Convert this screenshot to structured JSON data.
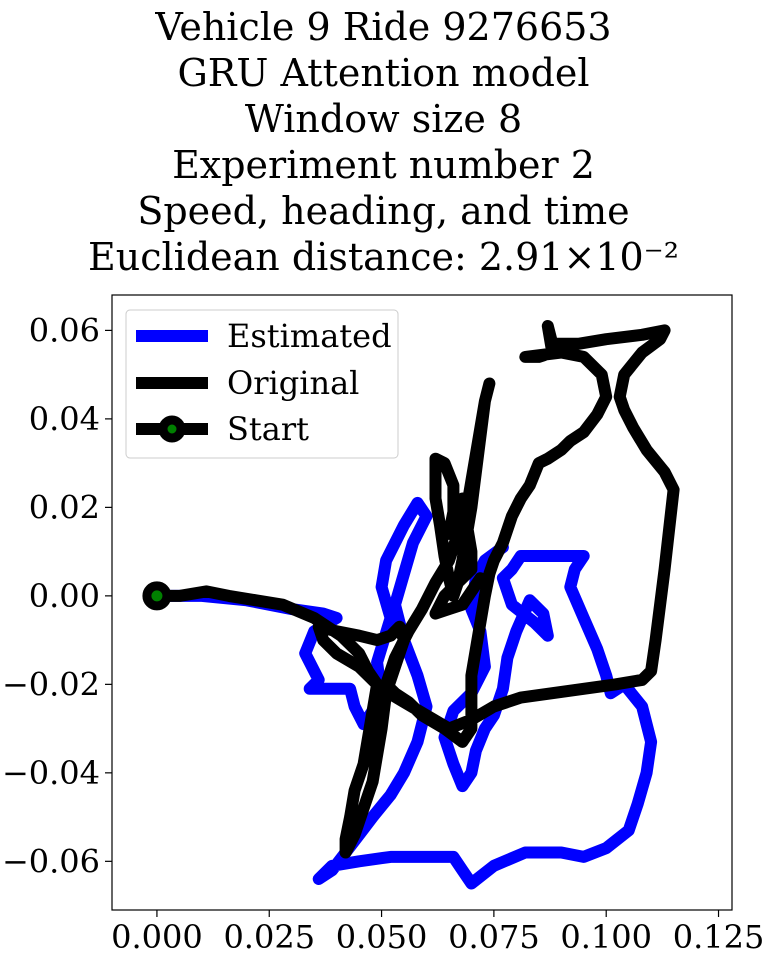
{
  "chart_data": {
    "type": "line",
    "title_lines": [
      "Vehicle 9 Ride 9276653",
      "GRU Attention model",
      "Window size 8",
      "Experiment number 2",
      "Speed, heading, and time",
      "Euclidean distance: 2.91×10⁻²"
    ],
    "xlabel": "",
    "ylabel": "",
    "xlim": [
      -0.01,
      0.128
    ],
    "ylim": [
      -0.071,
      0.068
    ],
    "xticks": [
      0.0,
      0.025,
      0.05,
      0.075,
      0.1,
      0.125
    ],
    "xtick_labels": [
      "0.000",
      "0.025",
      "0.050",
      "0.075",
      "0.100",
      "0.125"
    ],
    "yticks": [
      -0.06,
      -0.04,
      -0.02,
      0.0,
      0.02,
      0.04,
      0.06
    ],
    "ytick_labels": [
      "−0.06",
      "−0.04",
      "−0.02",
      "0.00",
      "0.02",
      "0.04",
      "0.06"
    ],
    "grid": false,
    "legend_position": "top-left",
    "legend": [
      "Estimated",
      "Original",
      "Start"
    ],
    "series": [
      {
        "name": "Estimated",
        "color": "#0000ff",
        "points": [
          [
            0.0,
            0.0
          ],
          [
            0.01,
            0.0
          ],
          [
            0.02,
            -0.001
          ],
          [
            0.03,
            -0.003
          ],
          [
            0.037,
            -0.004
          ],
          [
            0.04,
            -0.005
          ],
          [
            0.035,
            -0.008
          ],
          [
            0.033,
            -0.013
          ],
          [
            0.036,
            -0.019
          ],
          [
            0.034,
            -0.021
          ],
          [
            0.037,
            -0.021
          ],
          [
            0.043,
            -0.021
          ],
          [
            0.044,
            -0.025
          ],
          [
            0.046,
            -0.029
          ],
          [
            0.05,
            -0.023
          ],
          [
            0.049,
            -0.015
          ],
          [
            0.052,
            -0.005
          ],
          [
            0.05,
            0.002
          ],
          [
            0.051,
            0.008
          ],
          [
            0.055,
            0.016
          ],
          [
            0.058,
            0.021
          ],
          [
            0.06,
            0.018
          ],
          [
            0.057,
            0.012
          ],
          [
            0.055,
            0.005
          ],
          [
            0.053,
            -0.002
          ],
          [
            0.055,
            -0.01
          ],
          [
            0.058,
            -0.018
          ],
          [
            0.06,
            -0.025
          ],
          [
            0.058,
            -0.033
          ],
          [
            0.055,
            -0.04
          ],
          [
            0.052,
            -0.045
          ],
          [
            0.048,
            -0.05
          ],
          [
            0.045,
            -0.054
          ],
          [
            0.042,
            -0.058
          ],
          [
            0.039,
            -0.062
          ],
          [
            0.036,
            -0.064
          ],
          [
            0.039,
            -0.061
          ],
          [
            0.045,
            -0.06
          ],
          [
            0.052,
            -0.059
          ],
          [
            0.06,
            -0.059
          ],
          [
            0.066,
            -0.059
          ],
          [
            0.068,
            -0.062
          ],
          [
            0.07,
            -0.065
          ],
          [
            0.075,
            -0.061
          ],
          [
            0.082,
            -0.058
          ],
          [
            0.09,
            -0.058
          ],
          [
            0.095,
            -0.059
          ],
          [
            0.1,
            -0.057
          ],
          [
            0.105,
            -0.053
          ],
          [
            0.107,
            -0.047
          ],
          [
            0.109,
            -0.04
          ],
          [
            0.11,
            -0.033
          ],
          [
            0.108,
            -0.025
          ],
          [
            0.104,
            -0.02
          ],
          [
            0.101,
            -0.022
          ],
          [
            0.1,
            -0.018
          ],
          [
            0.098,
            -0.012
          ],
          [
            0.095,
            -0.005
          ],
          [
            0.092,
            0.002
          ],
          [
            0.093,
            0.006
          ],
          [
            0.095,
            0.009
          ],
          [
            0.09,
            0.009
          ],
          [
            0.085,
            0.009
          ],
          [
            0.081,
            0.009
          ],
          [
            0.079,
            0.006
          ],
          [
            0.077,
            0.004
          ],
          [
            0.079,
            -0.002
          ],
          [
            0.084,
            -0.006
          ],
          [
            0.087,
            -0.009
          ],
          [
            0.086,
            -0.004
          ],
          [
            0.083,
            -0.001
          ],
          [
            0.08,
            -0.008
          ],
          [
            0.078,
            -0.014
          ],
          [
            0.077,
            -0.021
          ],
          [
            0.075,
            -0.027
          ],
          [
            0.073,
            -0.03
          ],
          [
            0.071,
            -0.035
          ],
          [
            0.07,
            -0.04
          ],
          [
            0.068,
            -0.043
          ],
          [
            0.066,
            -0.038
          ],
          [
            0.064,
            -0.032
          ],
          [
            0.066,
            -0.026
          ],
          [
            0.07,
            -0.022
          ],
          [
            0.073,
            -0.016
          ],
          [
            0.072,
            -0.008
          ],
          [
            0.07,
            -0.003
          ],
          [
            0.071,
            0.004
          ],
          [
            0.073,
            0.008
          ],
          [
            0.077,
            0.011
          ]
        ]
      },
      {
        "name": "Original",
        "color": "#000000",
        "points": [
          [
            0.0,
            0.0
          ],
          [
            0.005,
            0.0
          ],
          [
            0.011,
            0.001
          ],
          [
            0.016,
            0.0
          ],
          [
            0.022,
            -0.001
          ],
          [
            0.028,
            -0.002
          ],
          [
            0.035,
            -0.005
          ],
          [
            0.041,
            -0.009
          ],
          [
            0.045,
            -0.013
          ],
          [
            0.047,
            -0.017
          ],
          [
            0.049,
            -0.02
          ],
          [
            0.048,
            -0.026
          ],
          [
            0.047,
            -0.032
          ],
          [
            0.046,
            -0.038
          ],
          [
            0.044,
            -0.044
          ],
          [
            0.043,
            -0.05
          ],
          [
            0.042,
            -0.055
          ],
          [
            0.042,
            -0.058
          ],
          [
            0.044,
            -0.054
          ],
          [
            0.046,
            -0.048
          ],
          [
            0.048,
            -0.042
          ],
          [
            0.049,
            -0.036
          ],
          [
            0.05,
            -0.03
          ],
          [
            0.051,
            -0.022
          ],
          [
            0.053,
            -0.016
          ],
          [
            0.055,
            -0.01
          ],
          [
            0.054,
            -0.007
          ],
          [
            0.052,
            -0.009
          ],
          [
            0.049,
            -0.01
          ],
          [
            0.045,
            -0.009
          ],
          [
            0.04,
            -0.008
          ],
          [
            0.036,
            -0.007
          ],
          [
            0.037,
            -0.01
          ],
          [
            0.04,
            -0.013
          ],
          [
            0.045,
            -0.016
          ],
          [
            0.05,
            -0.021
          ],
          [
            0.055,
            -0.024
          ],
          [
            0.06,
            -0.027
          ],
          [
            0.065,
            -0.03
          ],
          [
            0.07,
            -0.028
          ],
          [
            0.075,
            -0.025
          ],
          [
            0.081,
            -0.023
          ],
          [
            0.088,
            -0.022
          ],
          [
            0.095,
            -0.021
          ],
          [
            0.102,
            -0.02
          ],
          [
            0.108,
            -0.019
          ],
          [
            0.11,
            -0.017
          ],
          [
            0.111,
            -0.01
          ],
          [
            0.112,
            -0.002
          ],
          [
            0.113,
            0.006
          ],
          [
            0.114,
            0.015
          ],
          [
            0.115,
            0.024
          ],
          [
            0.113,
            0.028
          ],
          [
            0.109,
            0.033
          ],
          [
            0.106,
            0.038
          ],
          [
            0.104,
            0.042
          ],
          [
            0.103,
            0.045
          ],
          [
            0.104,
            0.05
          ],
          [
            0.108,
            0.055
          ],
          [
            0.112,
            0.058
          ],
          [
            0.113,
            0.06
          ],
          [
            0.108,
            0.059
          ],
          [
            0.1,
            0.058
          ],
          [
            0.094,
            0.057
          ],
          [
            0.088,
            0.057
          ],
          [
            0.087,
            0.061
          ],
          [
            0.088,
            0.055
          ],
          [
            0.085,
            0.054
          ],
          [
            0.082,
            0.054
          ],
          [
            0.09,
            0.055
          ],
          [
            0.095,
            0.054
          ],
          [
            0.099,
            0.05
          ],
          [
            0.1,
            0.045
          ],
          [
            0.098,
            0.041
          ],
          [
            0.095,
            0.037
          ],
          [
            0.092,
            0.035
          ],
          [
            0.09,
            0.033
          ],
          [
            0.087,
            0.031
          ],
          [
            0.085,
            0.03
          ],
          [
            0.083,
            0.025
          ],
          [
            0.081,
            0.022
          ],
          [
            0.079,
            0.018
          ],
          [
            0.077,
            0.012
          ],
          [
            0.075,
            0.008
          ],
          [
            0.074,
            0.005
          ],
          [
            0.073,
            0.0
          ],
          [
            0.072,
            -0.006
          ],
          [
            0.071,
            -0.012
          ],
          [
            0.07,
            -0.018
          ],
          [
            0.07,
            -0.024
          ],
          [
            0.07,
            -0.03
          ],
          [
            0.068,
            -0.033
          ],
          [
            0.064,
            -0.03
          ],
          [
            0.059,
            -0.027
          ],
          [
            0.056,
            -0.024
          ],
          [
            0.053,
            -0.022
          ],
          [
            0.051,
            -0.02
          ],
          [
            0.053,
            -0.014
          ],
          [
            0.056,
            -0.008
          ],
          [
            0.059,
            -0.003
          ],
          [
            0.062,
            0.003
          ],
          [
            0.065,
            0.008
          ],
          [
            0.067,
            0.014
          ],
          [
            0.069,
            0.02
          ],
          [
            0.07,
            0.026
          ],
          [
            0.071,
            0.032
          ],
          [
            0.072,
            0.038
          ],
          [
            0.073,
            0.044
          ],
          [
            0.074,
            0.048
          ],
          [
            0.073,
            0.044
          ],
          [
            0.072,
            0.036
          ],
          [
            0.071,
            0.028
          ],
          [
            0.07,
            0.02
          ],
          [
            0.069,
            0.014
          ],
          [
            0.068,
            0.008
          ],
          [
            0.067,
            0.003
          ],
          [
            0.066,
            0.0
          ],
          [
            0.065,
            0.004
          ],
          [
            0.064,
            0.009
          ],
          [
            0.063,
            0.016
          ],
          [
            0.062,
            0.022
          ],
          [
            0.062,
            0.028
          ],
          [
            0.062,
            0.031
          ],
          [
            0.064,
            0.03
          ],
          [
            0.066,
            0.025
          ],
          [
            0.066,
            0.019
          ],
          [
            0.065,
            0.014
          ],
          [
            0.067,
            0.018
          ],
          [
            0.068,
            0.022
          ],
          [
            0.069,
            0.016
          ],
          [
            0.07,
            0.01
          ],
          [
            0.07,
            0.006
          ],
          [
            0.068,
            0.004
          ],
          [
            0.066,
            0.002
          ],
          [
            0.064,
            0.0
          ],
          [
            0.063,
            -0.002
          ],
          [
            0.062,
            -0.004
          ],
          [
            0.065,
            -0.003
          ],
          [
            0.068,
            -0.002
          ],
          [
            0.07,
            0.001
          ],
          [
            0.072,
            0.004
          ]
        ]
      }
    ],
    "start_point": {
      "name": "Start",
      "x": 0.0,
      "y": 0.0,
      "edge_color": "#000000",
      "face_color": "#008000"
    }
  }
}
